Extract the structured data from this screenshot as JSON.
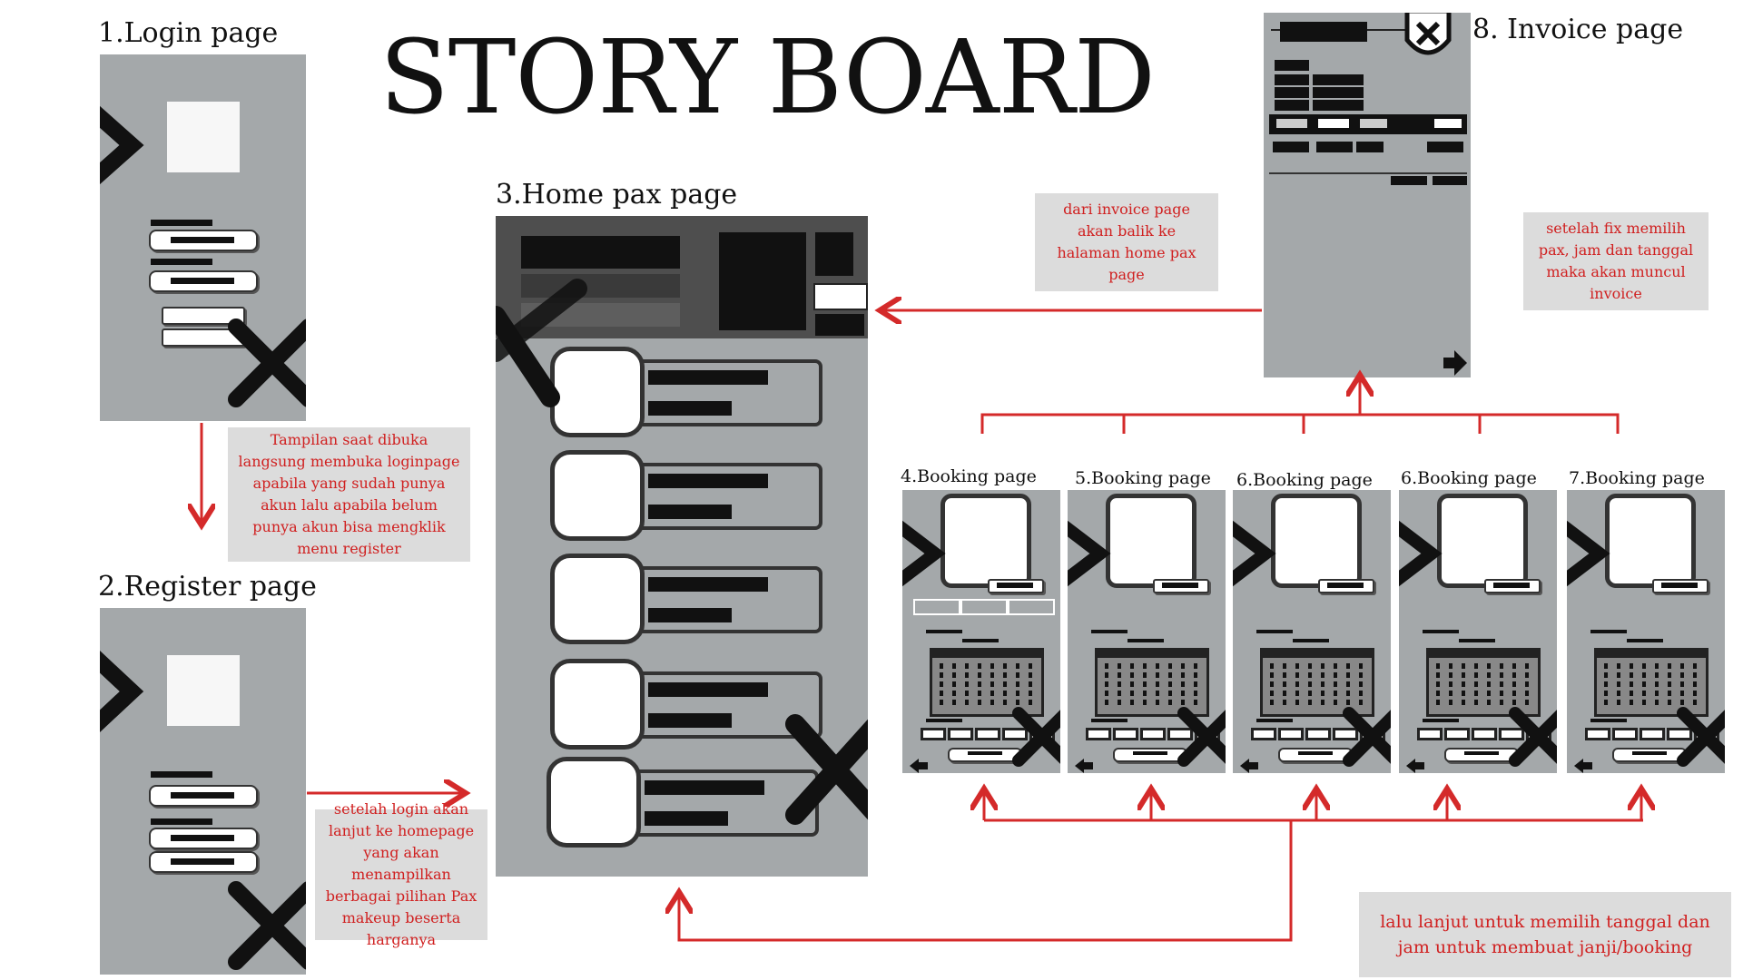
{
  "title": "STORY BOARD",
  "pages": {
    "login": "1.Login page",
    "register": "2.Register page",
    "home": "3.Home pax page",
    "booking4": "4.Booking page",
    "booking5": "5.Booking page",
    "booking6": "6.Booking page",
    "booking7": "6.Booking page",
    "booking8": "7.Booking page",
    "invoice": "8. Invoice page"
  },
  "notes": {
    "login": "Tampilan saat dibuka langsung membuka loginpage apabila yang sudah punya akun lalu apabila belum punya akun bisa mengklik menu register",
    "register": "setelah login akan lanjut ke homepage yang akan menampilkan berbagai pilihan Pax makeup beserta harganya",
    "invoice_back": "dari invoice page akan balik ke halaman home pax page",
    "invoice_show": "setelah fix memilih pax, jam dan tanggal maka akan muncul invoice",
    "booking": "lalu lanjut untuk memilih tanggal dan jam untuk membuat janji/booking"
  },
  "colors": {
    "arrow": "#d42a2a",
    "screen": "#a4a8aa",
    "note_bg": "#dcdcdc",
    "note_text": "#d02020"
  },
  "icons": [
    "close-icon",
    "arrow-right-icon",
    "arrow-left-icon"
  ]
}
